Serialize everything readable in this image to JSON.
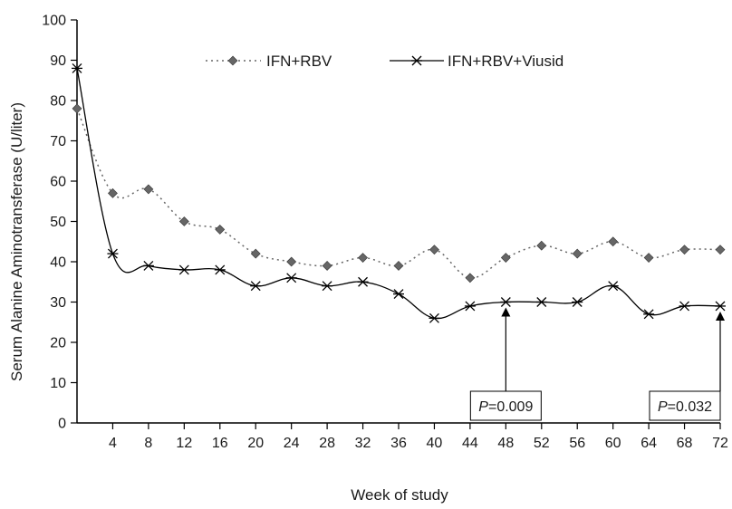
{
  "chart_data": {
    "type": "line",
    "xlabel": "Week of study",
    "ylabel": "Serum Alanine Aminotransferase (U/liter)",
    "xlim": [
      0,
      72
    ],
    "ylim": [
      0,
      100
    ],
    "x_ticks": [
      4,
      8,
      12,
      16,
      20,
      24,
      28,
      32,
      36,
      40,
      44,
      48,
      52,
      56,
      60,
      64,
      68,
      72
    ],
    "y_ticks": [
      0,
      10,
      20,
      30,
      40,
      50,
      60,
      70,
      80,
      90,
      100
    ],
    "grid": false,
    "legend_position": "top",
    "series": [
      {
        "name": "IFN+RBV",
        "line_style": "dotted",
        "marker": "diamond",
        "color": "#666666",
        "x": [
          0,
          4,
          8,
          12,
          16,
          20,
          24,
          28,
          32,
          36,
          40,
          44,
          48,
          52,
          56,
          60,
          64,
          68,
          72
        ],
        "values": [
          78,
          57,
          58,
          50,
          48,
          42,
          40,
          39,
          41,
          39,
          43,
          36,
          41,
          44,
          42,
          45,
          41,
          43,
          43
        ]
      },
      {
        "name": "IFN+RBV+Viusid",
        "line_style": "solid",
        "marker": "asterisk",
        "color": "#000000",
        "x": [
          0,
          4,
          8,
          12,
          16,
          20,
          24,
          28,
          32,
          36,
          40,
          44,
          48,
          52,
          56,
          60,
          64,
          68,
          72
        ],
        "values": [
          88,
          42,
          39,
          38,
          38,
          34,
          36,
          34,
          35,
          32,
          26,
          29,
          30,
          30,
          30,
          34,
          27,
          29,
          29
        ]
      }
    ],
    "annotations": [
      {
        "label_italic": "P",
        "label_rest": "=0.009",
        "x": 48,
        "y": 30
      },
      {
        "label_italic": "P",
        "label_rest": "=0.032",
        "x": 72,
        "y": 29
      }
    ]
  }
}
